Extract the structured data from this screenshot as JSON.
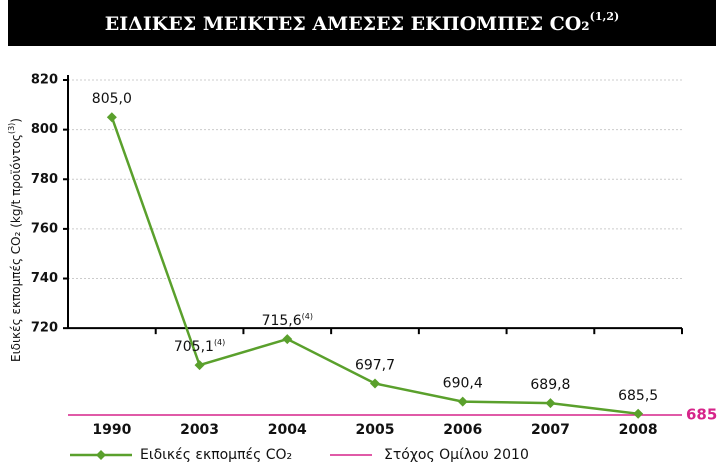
{
  "chart_data": {
    "type": "line",
    "title": "ΕΙΔΙΚΕΣ ΜΕΙΚΤΕΣ ΑΜΕΣΕΣ ΕΚΠΟΜΠΕΣ CO₂",
    "title_note": "(1,2)",
    "ylabel": [
      "Ειδικές εκπομπές CO₂ (kg/t προϊόντος",
      "(3)",
      ")"
    ],
    "categories": [
      "1990",
      "2003",
      "2004",
      "2005",
      "2006",
      "2007",
      "2008"
    ],
    "series": [
      {
        "name": "Ειδικές εκπομπές CO₂",
        "color": "#5aa02c",
        "values": [
          805.0,
          705.1,
          715.6,
          697.7,
          690.4,
          689.8,
          685.5
        ],
        "value_labels": [
          "805,0",
          "705,1",
          "715,6",
          "697,7",
          "690,4",
          "689,8",
          "685,5"
        ],
        "value_notes": [
          null,
          "(4)",
          "(4)",
          null,
          null,
          null,
          null
        ]
      }
    ],
    "target": {
      "name": "Στόχος Ομίλου 2010",
      "value": 685,
      "label": "685",
      "color": "#d6248a"
    },
    "ylim": [
      720,
      820
    ],
    "yticks": [
      720,
      740,
      760,
      780,
      800,
      820
    ],
    "grid": true
  }
}
